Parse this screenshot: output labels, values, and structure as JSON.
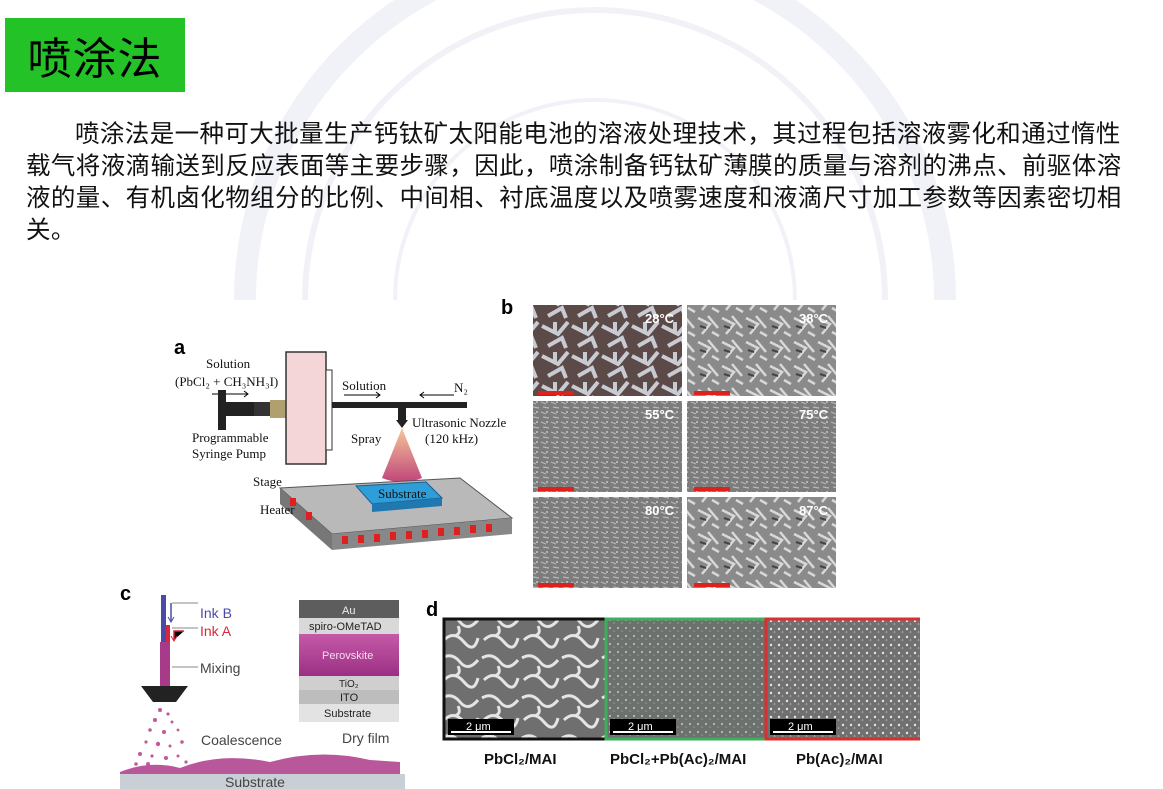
{
  "slide": {
    "title": "喷涂法",
    "paragraph": "喷涂法是一种可大批量生产钙钛矿太阳能电池的溶液处理技术，其过程包括溶液雾化和通过惰性载气将液滴输送到反应表面等主要步骤，因此，喷涂制备钙钛矿薄膜的质量与溶剂的沸点、前驱体溶液的量、有机卤化物组分的比例、中间相、衬底温度以及喷雾速度和液滴尺寸加工参数等因素密切相关。"
  },
  "panel_a": {
    "label": "a",
    "solution": "Solution",
    "solution_formula": "(PbCl₂ + CH₃NH₃I)",
    "solution_flow": "Solution",
    "n2": "N₂",
    "nozzle": "Ultrasonic Nozzle",
    "frequency": "(120 kHz)",
    "pump_line1": "Programmable",
    "pump_line2": "Syringe Pump",
    "spray": "Spray",
    "stage": "Stage",
    "substrate": "Substrate",
    "heater": "Heater"
  },
  "panel_b": {
    "label": "b",
    "temps": [
      "28°C",
      "38°C",
      "55°C",
      "75°C",
      "80°C",
      "87°C"
    ]
  },
  "panel_c": {
    "label": "c",
    "ink_b": "Ink B",
    "ink_a": "Ink A",
    "mixing": "Mixing",
    "coalescence": "Coalescence",
    "dry_film": "Dry film",
    "substrate": "Substrate",
    "layers": [
      "Au",
      "spiro-OMeTAD",
      "Perovskite",
      "TiO₂",
      "ITO",
      "Substrate"
    ]
  },
  "panel_d": {
    "label": "d",
    "scale": "2 μm",
    "captions": [
      "PbCl₂/MAI",
      "PbCl₂+Pb(Ac)₂/MAI",
      "Pb(Ac)₂/MAI"
    ],
    "border_colors": [
      "#111111",
      "#3cae5c",
      "#d9302f"
    ]
  },
  "colors": {
    "title_bg": "#23c227",
    "scale_bar": "#e0211b",
    "ink_a": "#d9263a",
    "ink_b": "#4a4aa8",
    "perovskite": "#b03f96"
  }
}
